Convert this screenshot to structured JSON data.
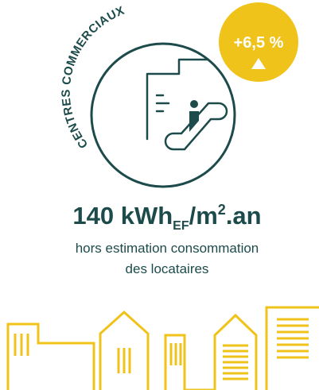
{
  "category_label": "CENTRES COMMERCIAUX",
  "badge": {
    "text": "+6,5 %"
  },
  "metric": {
    "value": "140 kWh",
    "subscript": "EF",
    "unit": "/m",
    "superscript": "2",
    "suffix": ".an"
  },
  "note": {
    "line1": "hors estimation consommation",
    "line2": "des locataires"
  }
}
